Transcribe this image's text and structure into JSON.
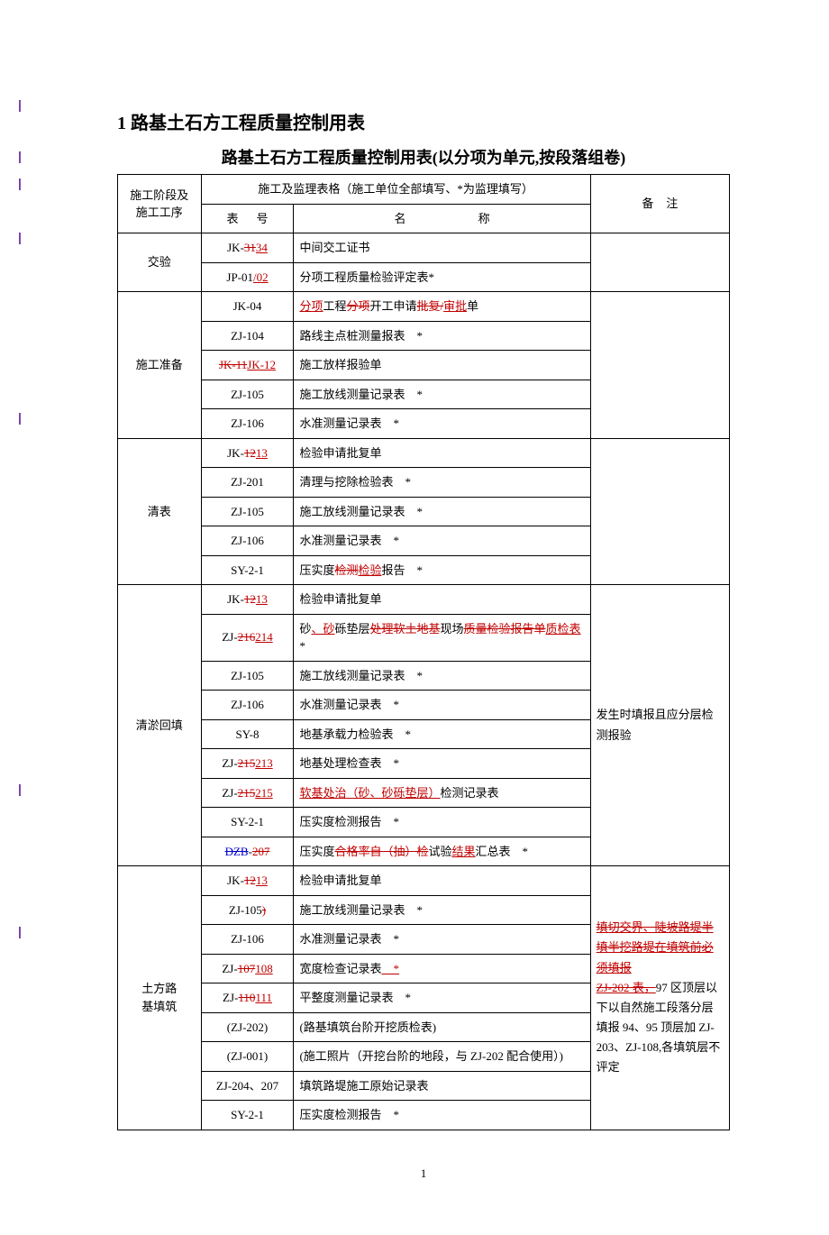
{
  "heading": "1 路基土石方工程质量控制用表",
  "tableTitle": "路基土石方工程质量控制用表(以分项为单元,按段落组卷)",
  "header": {
    "phase1": "施工阶段及",
    "phase2": "施工工序",
    "formsHeader": "施工及监理表格（施工单位全部填写、*为监理填写）",
    "codeHeader": "表",
    "codeHeader2": "号",
    "nameHeader": "名",
    "nameHeader2": "称",
    "noteHeader": "备",
    "noteHeader2": "注"
  },
  "sections": [
    {
      "phase": "交验",
      "rows": [
        {
          "codePlain": "JK-",
          "codeStrike": "31",
          "codeIns": "34",
          "name": "中间交工证书"
        },
        {
          "codePlain": "JP-01",
          "codeIns": "/02",
          "name": "分项工程质量检验评定表*"
        }
      ],
      "note": ""
    },
    {
      "phase": "施工准备",
      "rows": [
        {
          "codePlain": "JK-04",
          "nameParts": [
            {
              "t": "ins",
              "v": "分项"
            },
            {
              "t": "p",
              "v": "工程"
            },
            {
              "t": "strike",
              "v": "分项"
            },
            {
              "t": "p",
              "v": "开工申请"
            },
            {
              "t": "strike",
              "v": "批复/"
            },
            {
              "t": "ins",
              "v": "审批"
            },
            {
              "t": "p",
              "v": "单"
            }
          ]
        },
        {
          "codePlain": "ZJ-104",
          "name": "路线主点桩测量报表　*"
        },
        {
          "codeStrikeFull": "JK-11",
          "codeIns": "JK-12",
          "name": "施工放样报验单"
        },
        {
          "codePlain": "ZJ-105",
          "name": "施工放线测量记录表　*"
        },
        {
          "codePlain": "ZJ-106",
          "name": "水准测量记录表　*"
        }
      ],
      "note": ""
    },
    {
      "phase": "清表",
      "rows": [
        {
          "codePlain": "JK-",
          "codeStrike": "12",
          "codeIns": "13",
          "name": "检验申请批复单"
        },
        {
          "codePlain": "ZJ-201",
          "name": "清理与挖除检验表　*"
        },
        {
          "codePlain": "ZJ-105",
          "name": "施工放线测量记录表　*"
        },
        {
          "codePlain": "ZJ-106",
          "name": "水准测量记录表　*"
        },
        {
          "codePlain": "SY-2-1",
          "nameParts": [
            {
              "t": "p",
              "v": "压实度"
            },
            {
              "t": "strike",
              "v": "检测"
            },
            {
              "t": "ins",
              "v": "检验"
            },
            {
              "t": "p",
              "v": "报告　*"
            }
          ]
        }
      ],
      "note": ""
    },
    {
      "phase": "清淤回填",
      "rows": [
        {
          "codePlain": "JK-",
          "codeStrike": "12",
          "codeIns": "13",
          "name": "检验申请批复单"
        },
        {
          "codePlain": "ZJ-",
          "codeStrike": "216",
          "codeIns": "214",
          "nameParts": [
            {
              "t": "p",
              "v": "砂"
            },
            {
              "t": "ins",
              "v": "、砂"
            },
            {
              "t": "p",
              "v": "砾垫层"
            },
            {
              "t": "strike",
              "v": "处理软土地基"
            },
            {
              "t": "p",
              "v": "现场"
            },
            {
              "t": "strike",
              "v": "质量检验报告单"
            },
            {
              "t": "ins",
              "v": "质检表"
            },
            {
              "t": "p",
              "v": "*"
            }
          ],
          "tall": true
        },
        {
          "codePlain": "ZJ-105",
          "name": "施工放线测量记录表　*"
        },
        {
          "codePlain": "ZJ-106",
          "name": "水准测量记录表　*"
        },
        {
          "codePlain": "SY-8",
          "name": "地基承载力检验表　*"
        },
        {
          "codePlain": "ZJ-",
          "codeStrike": "215",
          "codeIns": "213",
          "name": "地基处理检查表　*"
        },
        {
          "codePlain": "ZJ-",
          "codeStrike": "215",
          "codeIns": "215",
          "nameParts": [
            {
              "t": "ins",
              "v": "软基处治（砂、砂砾垫层）"
            },
            {
              "t": "p",
              "v": "检测记录表"
            }
          ]
        },
        {
          "codePlain": "SY-2-1",
          "name": "压实度检测报告　*"
        },
        {
          "codeStrikeBlue": "DZB",
          "codePlain2": "-",
          "codeStrike": "207",
          "nameParts": [
            {
              "t": "p",
              "v": "压实度"
            },
            {
              "t": "strike",
              "v": "合格率自（抽）检"
            },
            {
              "t": "p",
              "v": "试验"
            },
            {
              "t": "ins",
              "v": "结果"
            },
            {
              "t": "p",
              "v": "汇总表　*"
            }
          ]
        }
      ],
      "notePlain": "发生时填报且应分层检测报验"
    },
    {
      "phase": "土方路基填筑",
      "phaseMultiline": [
        "土方路",
        "基填筑"
      ],
      "rows": [
        {
          "codePlain": "JK-",
          "codeStrike": "12",
          "codeIns": "13",
          "name": "检验申请批复单"
        },
        {
          "codePlain": "ZJ-105",
          "codeStrikeSuffix": ")",
          "name": "施工放线测量记录表　*"
        },
        {
          "codePlain": "ZJ-106",
          "name": "水准测量记录表　*"
        },
        {
          "codePlain": "ZJ-",
          "codeStrike": "107",
          "codeIns": "108",
          "nameParts": [
            {
              "t": "p",
              "v": "宽度检查记录表"
            },
            {
              "t": "ins",
              "v": "　*"
            }
          ]
        },
        {
          "codePlain": "ZJ-",
          "codeStrike": "110",
          "codeIns": "111",
          "name": "平整度测量记录表　*"
        },
        {
          "codePlain": "(ZJ-202)",
          "name": "(路基填筑台阶开挖质检表)"
        },
        {
          "codePlain": "(ZJ-001)",
          "name": "(施工照片（开挖台阶的地段，与 ZJ-202 配合使用）)"
        },
        {
          "codePlain": "ZJ-204、207",
          "name": "填筑路堤施工原始记录表"
        },
        {
          "codePlain": "SY-2-1",
          "name": "压实度检测报告　*"
        }
      ],
      "noteParts": [
        {
          "t": "strikeU",
          "v": "填切交界、陡坡路堤半填半挖路堤在填筑前必须填报"
        },
        {
          "t": "br"
        },
        {
          "t": "strikeU",
          "v": "ZJ-202 表，"
        },
        {
          "t": "p",
          "v": "97 区顶层以下以自然施工段落分层填报 94、95 顶层加 ZJ-203、ZJ-108,各填筑层不评定"
        }
      ]
    }
  ],
  "pageNumber": "1",
  "revMarks": [
    108,
    165,
    195,
    255,
    455,
    867,
    1025
  ]
}
